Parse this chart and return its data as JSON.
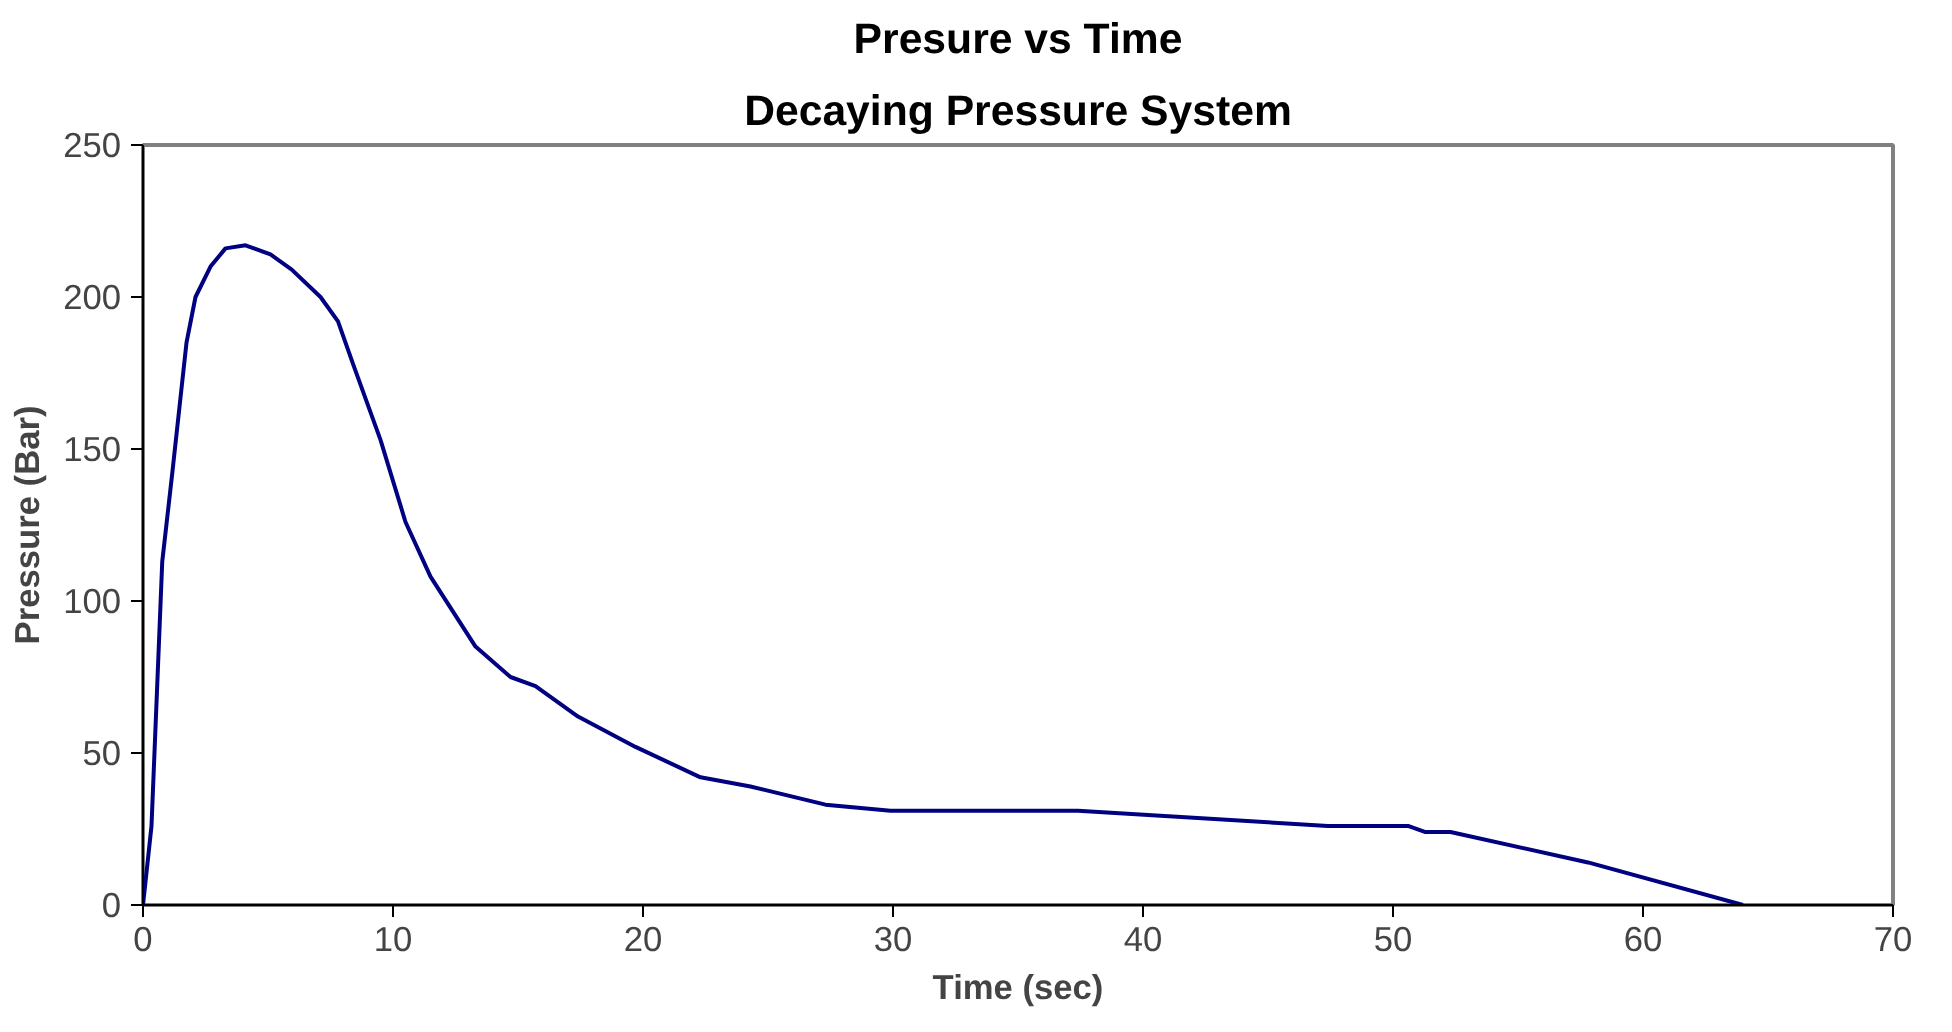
{
  "chart_data": {
    "type": "line",
    "title": "Presure vs Time",
    "subtitle": "Decaying Pressure System",
    "xlabel": "Time (sec)",
    "ylabel": "Pressure (Bar)",
    "xlim": [
      0,
      70
    ],
    "xticks": [
      0,
      10,
      20,
      30,
      40,
      50,
      60,
      70
    ],
    "ylim": [
      0,
      250
    ],
    "yticks": [
      0,
      50,
      100,
      150,
      200,
      250
    ],
    "grid": false,
    "marker": "none",
    "line_style": "solid",
    "series": [
      {
        "color": "#000080",
        "x": [
          0,
          0.34,
          0.77,
          1.17,
          1.74,
          2.1,
          2.7,
          3.3,
          4.1,
          5.1,
          5.95,
          7.1,
          7.8,
          8.4,
          9.5,
          10.5,
          11.5,
          13.3,
          14.7,
          15.7,
          17.4,
          19.7,
          22.3,
          24.3,
          27.3,
          29.9,
          37.4,
          47.4,
          50.6,
          51.3,
          52.3,
          57.8,
          64.0
        ],
        "values": [
          0,
          26,
          113,
          142,
          185,
          200,
          210,
          216,
          217,
          214,
          209,
          200,
          192,
          178,
          153,
          126,
          108,
          85,
          75,
          72,
          62,
          52,
          42,
          39,
          33,
          31,
          31,
          26,
          26,
          24,
          24,
          14,
          0
        ]
      }
    ]
  }
}
